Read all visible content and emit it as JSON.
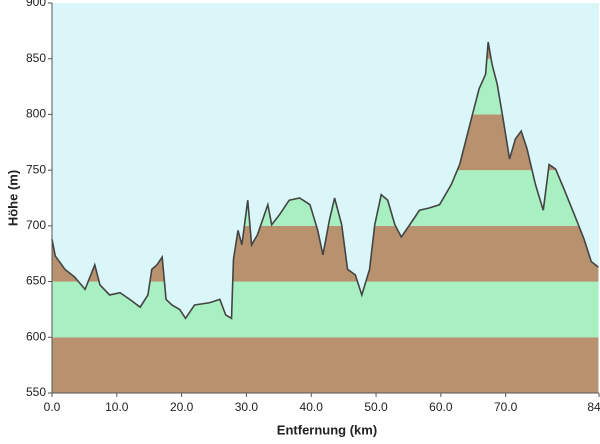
{
  "chart_data": {
    "type": "area",
    "xlabel": "Entfernung  (km)",
    "ylabel": "Höhe (m)",
    "x": [
      0,
      0.5,
      2,
      3.5,
      5.1,
      6.6,
      7.4,
      8.9,
      10.5,
      12,
      13.6,
      14.8,
      15.4,
      16.2,
      17,
      17.6,
      18.5,
      19.7,
      20.6,
      22,
      24.3,
      25.9,
      26.8,
      27.7,
      28,
      28.7,
      29.3,
      30.2,
      30.8,
      31.7,
      33.3,
      33.9,
      35.1,
      36.6,
      38.2,
      39.8,
      41,
      41.8,
      42.8,
      43.6,
      44.7,
      45.6,
      46.8,
      47.8,
      49,
      49.8,
      50.8,
      51.8,
      52.9,
      53.9,
      55.2,
      56.7,
      58.2,
      59.8,
      61.6,
      62.9,
      64.7,
      65.9,
      66.9,
      67.3,
      67.9,
      68.7,
      69.6,
      70.6,
      71.5,
      72.4,
      73.3,
      74.6,
      75.8,
      76.7,
      77.7,
      79,
      80.6,
      82.1,
      83.2,
      84.3
    ],
    "series": [
      {
        "color": "#444444",
        "values": [
          688,
          673,
          661,
          654,
          643,
          665,
          647,
          638,
          640,
          634,
          627,
          638,
          661,
          665,
          672,
          634,
          629,
          625,
          617,
          629,
          631,
          634,
          620,
          617,
          670,
          696,
          683,
          723,
          683,
          692,
          719,
          701,
          710,
          723,
          725,
          719,
          696,
          674,
          705,
          725,
          701,
          661,
          656,
          638,
          661,
          701,
          728,
          723,
          701,
          690,
          701,
          714,
          716,
          719,
          737,
          755,
          796,
          823,
          836,
          865,
          845,
          827,
          796,
          760,
          778,
          785,
          769,
          737,
          714,
          755,
          751,
          733,
          710,
          688,
          668,
          663
        ]
      }
    ],
    "band_colors": [
      "#b8926f",
      "#a8f0c2"
    ],
    "background": "#daf6f8",
    "xlim": [
      0,
      84.4
    ],
    "xticks": [
      {
        "value": 0,
        "label": "0.0"
      },
      {
        "value": 10,
        "label": "10.0"
      },
      {
        "value": 20,
        "label": "20.0"
      },
      {
        "value": 30,
        "label": "30.0"
      },
      {
        "value": 40,
        "label": "40.0"
      },
      {
        "value": 50,
        "label": "50.0"
      },
      {
        "value": 60,
        "label": "60.0"
      },
      {
        "value": 70,
        "label": "70.0"
      },
      {
        "value": 84.4,
        "label": "84.4"
      }
    ],
    "ylim": [
      550,
      900
    ],
    "yticks": [
      550,
      600,
      650,
      700,
      750,
      800,
      850,
      900
    ]
  }
}
